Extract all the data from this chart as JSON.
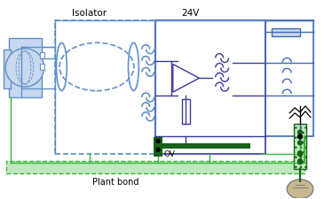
{
  "bg_color": "#ffffff",
  "blue": "#4169b0",
  "dblue": "#3a3a9a",
  "mblue": "#6090c8",
  "lblue": "#c8d8ee",
  "green": "#28a028",
  "dgreen": "#186018",
  "tgreen": "#38b838",
  "lgreen": "#c0e8c0",
  "gray": "#808080",
  "black": "#000000",
  "label_isolator": "Isolator",
  "label_24v": "24V",
  "label_ov": "OV",
  "label_plant_bond": "Plant bond",
  "figw": 3.65,
  "figh": 2.25,
  "dpi": 100
}
